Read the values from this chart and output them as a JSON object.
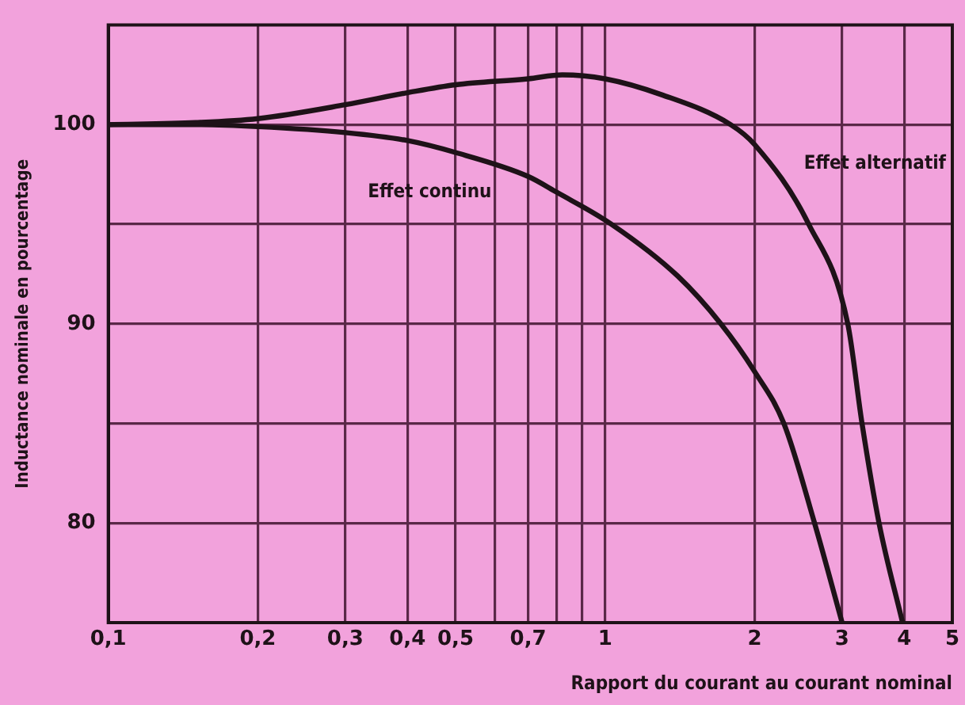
{
  "chart_data": {
    "type": "line",
    "xlabel": "Rapport du courant au courant nominal",
    "ylabel": "Inductance nominale en pourcentage",
    "log": "x",
    "grid": true,
    "marker": "none",
    "line_style": "solid",
    "xlim": [
      0.1,
      5
    ],
    "ylim": [
      75,
      105
    ],
    "xticks": [
      {
        "value": 0.1,
        "label": "0,1"
      },
      {
        "value": 0.2,
        "label": "0,2"
      },
      {
        "value": 0.3,
        "label": "0,3"
      },
      {
        "value": 0.4,
        "label": "0,4"
      },
      {
        "value": 0.5,
        "label": "0,5"
      },
      {
        "value": 0.6,
        "label": null
      },
      {
        "value": 0.7,
        "label": "0,7"
      },
      {
        "value": 0.8,
        "label": null
      },
      {
        "value": 0.9,
        "label": null
      },
      1,
      2,
      3,
      4,
      5
    ],
    "yticks": [
      80,
      {
        "value": 85,
        "label": null
      },
      90,
      {
        "value": 95,
        "label": null
      },
      100
    ],
    "series": [
      {
        "name": "Effet alternatif",
        "color": "#1e1218",
        "x": [
          0.1,
          0.15,
          0.2,
          0.3,
          0.4,
          0.5,
          0.7,
          0.82,
          1,
          1.3,
          1.79,
          2,
          2.57,
          3.08,
          3.29,
          3.56,
          3.97
        ],
        "values": [
          100,
          100.1,
          100.3,
          101,
          101.6,
          102,
          102.3,
          102.5,
          102.3,
          101.5,
          100,
          99,
          95,
          90,
          85,
          80,
          75
        ]
      },
      {
        "name": "Effet continu",
        "color": "#1e1218",
        "x": [
          0.1,
          0.15,
          0.2,
          0.3,
          0.4,
          0.5,
          0.7,
          0.8,
          1.03,
          1.4,
          1.71,
          2,
          2.29,
          2.64,
          3
        ],
        "values": [
          100,
          100,
          99.9,
          99.6,
          99.2,
          98.6,
          97.4,
          96.6,
          95,
          92.4,
          90,
          87.6,
          85,
          80,
          75
        ]
      }
    ]
  }
}
